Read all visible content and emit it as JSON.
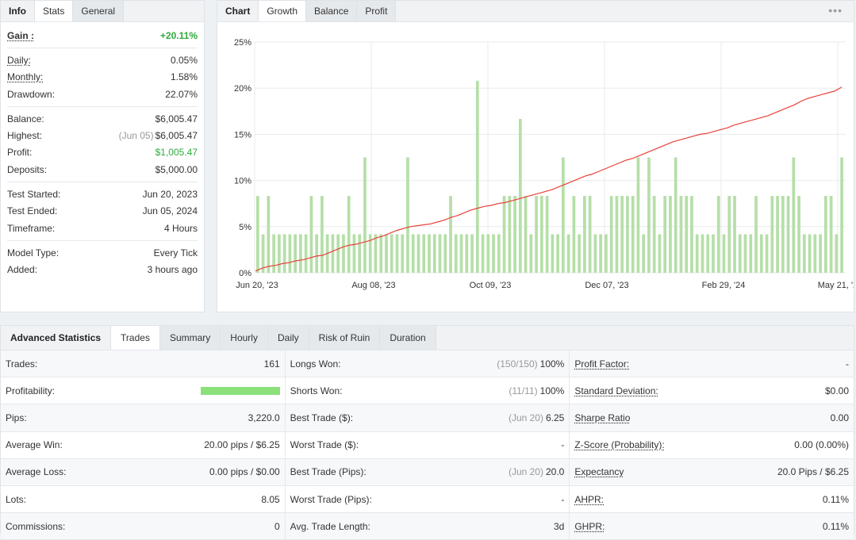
{
  "info": {
    "tabs": [
      "Info",
      "Stats",
      "General"
    ],
    "active_tab": "Stats",
    "gain": {
      "label": "Gain :",
      "value": "+20.11%"
    },
    "daily": {
      "label": "Daily:",
      "value": "0.05%"
    },
    "monthly": {
      "label": "Monthly:",
      "value": "1.58%"
    },
    "drawdown": {
      "label": "Drawdown:",
      "value": "22.07%"
    },
    "balance": {
      "label": "Balance:",
      "value": "$6,005.47"
    },
    "highest": {
      "label": "Highest:",
      "date": "(Jun 05)",
      "value": "$6,005.47"
    },
    "profit": {
      "label": "Profit:",
      "value": "$1,005.47"
    },
    "deposits": {
      "label": "Deposits:",
      "value": "$5,000.00"
    },
    "test_started": {
      "label": "Test Started:",
      "value": "Jun 20, 2023"
    },
    "test_ended": {
      "label": "Test Ended:",
      "value": "Jun 05, 2024"
    },
    "timeframe": {
      "label": "Timeframe:",
      "value": "4 Hours"
    },
    "model_type": {
      "label": "Model Type:",
      "value": "Every Tick"
    },
    "added": {
      "label": "Added:",
      "value": "3 hours ago"
    }
  },
  "chart": {
    "tabs": [
      "Chart",
      "Growth",
      "Balance",
      "Profit"
    ],
    "active_tab": "Growth",
    "menu_icon": "dots-icon"
  },
  "chart_data": {
    "type": "line",
    "y_ticks": [
      "0%",
      "5%",
      "10%",
      "15%",
      "20%",
      "25%"
    ],
    "x_ticks": [
      "Jun 20, '23",
      "Aug 08, '23",
      "Oct 09, '23",
      "Dec 07, '23",
      "Feb 29, '24",
      "May 21, '24"
    ],
    "ylim": [
      0,
      25
    ],
    "grid": true,
    "growth_color": "#e8413a",
    "bar_color": "#b5dfa8",
    "series": [
      {
        "values": [
          0.2,
          0.5,
          0.7,
          0.8,
          1.0,
          1.1,
          1.3,
          1.4,
          1.6,
          1.8,
          1.9,
          2.2,
          2.5,
          2.8,
          3.0,
          3.1,
          3.3,
          3.5,
          3.8,
          4.0,
          4.3,
          4.6,
          4.8,
          5.0,
          5.1,
          5.2,
          5.3,
          5.5,
          5.7,
          6.0,
          6.2,
          6.5,
          6.8,
          7.0,
          7.2,
          7.3,
          7.5,
          7.6,
          7.8,
          8.0,
          8.2,
          8.4,
          8.6,
          8.8,
          9.0,
          9.3,
          9.6,
          9.9,
          10.2,
          10.5,
          10.7,
          11.0,
          11.3,
          11.6,
          11.9,
          12.2,
          12.4,
          12.7,
          13.0,
          13.3,
          13.6,
          13.9,
          14.2,
          14.4,
          14.6,
          14.8,
          15.0,
          15.1,
          15.3,
          15.5,
          15.7,
          16.0,
          16.2,
          16.4,
          16.6,
          16.8,
          17.0,
          17.3,
          17.6,
          17.9,
          18.2,
          18.6,
          18.9,
          19.1,
          19.3,
          19.5,
          19.7,
          20.11
        ]
      }
    ],
    "bars": [
      8.33,
      4.17,
      8.33,
      4.17,
      4.17,
      4.17,
      4.17,
      4.17,
      4.17,
      4.17,
      8.33,
      4.17,
      8.33,
      4.17,
      4.17,
      4.17,
      4.17,
      8.33,
      4.17,
      4.17,
      12.5,
      4.17,
      4.17,
      4.17,
      4.17,
      4.17,
      4.17,
      4.17,
      12.5,
      4.17,
      4.17,
      4.17,
      4.17,
      4.17,
      4.17,
      4.17,
      8.33,
      4.17,
      4.17,
      4.17,
      4.17,
      20.8,
      4.17,
      4.17,
      4.17,
      4.17,
      8.33,
      8.33,
      8.33,
      16.67,
      8.33,
      4.17,
      8.33,
      8.33,
      8.33,
      4.17,
      4.17,
      12.5,
      4.17,
      8.33,
      4.17,
      8.33,
      8.33,
      4.17,
      4.17,
      4.17,
      8.33,
      8.33,
      8.33,
      8.33,
      8.33,
      12.5,
      4.17,
      12.5,
      8.33,
      4.17,
      8.33,
      8.33,
      12.5,
      8.33,
      8.33,
      8.33,
      4.17,
      4.17,
      4.17,
      4.17,
      8.33,
      4.17,
      8.33,
      8.33,
      4.17,
      4.17,
      4.17,
      8.33,
      4.17,
      4.17,
      8.33,
      8.33,
      8.33,
      8.33,
      12.5,
      8.33,
      4.17,
      4.17,
      4.17,
      4.17,
      8.33,
      8.33,
      4.17,
      12.5
    ]
  },
  "advanced": {
    "tabs": [
      "Advanced Statistics",
      "Trades",
      "Summary",
      "Hourly",
      "Daily",
      "Risk of Ruin",
      "Duration"
    ],
    "active_tab": "Trades",
    "col1": [
      {
        "label": "Trades:",
        "value": "161"
      },
      {
        "label": "Profitability:",
        "value": ""
      },
      {
        "label": "Pips:",
        "value": "3,220.0"
      },
      {
        "label": "Average Win:",
        "value": "20.00 pips / $6.25"
      },
      {
        "label": "Average Loss:",
        "value": "0.00 pips / $0.00"
      },
      {
        "label": "Lots:",
        "value": "8.05"
      },
      {
        "label": "Commissions:",
        "value": "0"
      }
    ],
    "col2": [
      {
        "label": "Longs Won:",
        "sub": "(150/150)",
        "value": "100%"
      },
      {
        "label": "Shorts Won:",
        "sub": "(11/11)",
        "value": "100%"
      },
      {
        "label": "Best Trade ($):",
        "sub": "(Jun 20)",
        "value": "6.25"
      },
      {
        "label": "Worst Trade ($):",
        "sub": "",
        "value": "-"
      },
      {
        "label": "Best Trade (Pips):",
        "sub": "(Jun 20)",
        "value": "20.0"
      },
      {
        "label": "Worst Trade (Pips):",
        "sub": "",
        "value": "-"
      },
      {
        "label": "Avg. Trade Length:",
        "sub": "",
        "value": "3d"
      }
    ],
    "col3": [
      {
        "label": "Profit Factor:",
        "value": "-"
      },
      {
        "label": "Standard Deviation:",
        "value": "$0.00"
      },
      {
        "label": "Sharpe Ratio",
        "value": "0.00"
      },
      {
        "label": "Z-Score (Probability):",
        "value": "0.00 (0.00%)"
      },
      {
        "label": "Expectancy",
        "value": "20.0 Pips / $6.25"
      },
      {
        "label": "AHPR:",
        "value": "0.11%"
      },
      {
        "label": "GHPR:",
        "value": "0.11%"
      }
    ]
  }
}
